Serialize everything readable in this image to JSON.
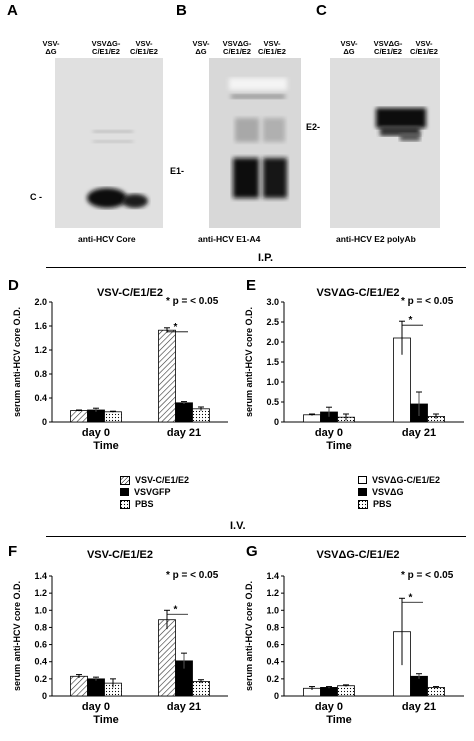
{
  "blots": {
    "A": {
      "letter": "A",
      "lanes": [
        "VSV-\nΔG",
        "VSVΔG-\nC/E1/E2",
        "VSV-\nC/E1/E2"
      ],
      "marker": "C -",
      "caption": "anti-HCV Core"
    },
    "B": {
      "letter": "B",
      "lanes": [
        "VSV-\nΔG",
        "VSVΔG-\nC/E1/E2",
        "VSV-\nC/E1/E2"
      ],
      "marker": "E1-",
      "caption": "anti-HCV E1-A4"
    },
    "C": {
      "letter": "C",
      "lanes": [
        "VSV-\nΔG",
        "VSVΔG-\nC/E1/E2",
        "VSV-\nC/E1/E2"
      ],
      "marker": "E2-",
      "caption": "anti-HCV E2 polyAb"
    }
  },
  "sections": {
    "ip": "I.P.",
    "iv": "I.V."
  },
  "legends": {
    "ip_left": [
      "VSV-C/E1/E2",
      "VSVGFP",
      "PBS"
    ],
    "ip_right": [
      "VSVΔG-C/E1/E2",
      "VSVΔG",
      "PBS"
    ]
  },
  "colors": {
    "bar_black": "#000000",
    "bar_white": "#ffffff",
    "blot_bg": "#dcdcdc"
  },
  "chart_data": [
    {
      "panel": "D",
      "type": "bar",
      "title": "VSV-C/E1/E2",
      "ylabel": "serum anti-HCV core O.D.",
      "xlabel": "Time",
      "categories": [
        "day 0",
        "day 21"
      ],
      "ylim": [
        0,
        2.0
      ],
      "yticks": [
        "0",
        "0.4",
        "0.8",
        "1.2",
        "1.6",
        "2.0"
      ],
      "annotation": "p = < 0.05",
      "significance_marker": "*",
      "series": [
        {
          "name": "VSV-C/E1/E2",
          "fill": "hatched",
          "values": [
            0.19,
            1.53
          ],
          "errors": [
            0.01,
            0.04
          ]
        },
        {
          "name": "VSVGFP",
          "fill": "black",
          "values": [
            0.2,
            0.32
          ],
          "errors": [
            0.03,
            0.02
          ]
        },
        {
          "name": "PBS",
          "fill": "dotted",
          "values": [
            0.17,
            0.22
          ],
          "errors": [
            0.01,
            0.03
          ]
        }
      ]
    },
    {
      "panel": "E",
      "type": "bar",
      "title": "VSVΔG-C/E1/E2",
      "ylabel": "serum anti-HCV core O.D.",
      "xlabel": "Time",
      "categories": [
        "day 0",
        "day 21"
      ],
      "ylim": [
        0,
        3.0
      ],
      "yticks": [
        "0",
        "0.5",
        "1.0",
        "1.5",
        "2.0",
        "2.5",
        "3.0"
      ],
      "annotation": "p = < 0.05",
      "significance_marker": "*",
      "series": [
        {
          "name": "VSVΔG-C/E1/E2",
          "fill": "white",
          "values": [
            0.18,
            2.1
          ],
          "errors": [
            0.02,
            0.42
          ]
        },
        {
          "name": "VSVΔG",
          "fill": "black",
          "values": [
            0.25,
            0.45
          ],
          "errors": [
            0.12,
            0.3
          ]
        },
        {
          "name": "PBS",
          "fill": "dotted",
          "values": [
            0.12,
            0.14
          ],
          "errors": [
            0.08,
            0.06
          ]
        }
      ]
    },
    {
      "panel": "F",
      "type": "bar",
      "title": "VSV-C/E1/E2",
      "ylabel": "serum anti-HCV core O.D.",
      "xlabel": "Time",
      "categories": [
        "day 0",
        "day 21"
      ],
      "ylim": [
        0,
        1.4
      ],
      "yticks": [
        "0",
        "0.2",
        "0.4",
        "0.6",
        "0.8",
        "1.0",
        "1.2",
        "1.4"
      ],
      "annotation": "p = < 0.05",
      "significance_marker": "*",
      "series": [
        {
          "name": "VSV-C/E1/E2",
          "fill": "hatched",
          "values": [
            0.23,
            0.89
          ],
          "errors": [
            0.02,
            0.11
          ]
        },
        {
          "name": "VSVGFP",
          "fill": "black",
          "values": [
            0.2,
            0.41
          ],
          "errors": [
            0.02,
            0.09
          ]
        },
        {
          "name": "PBS",
          "fill": "dotted",
          "values": [
            0.15,
            0.17
          ],
          "errors": [
            0.05,
            0.02
          ]
        }
      ]
    },
    {
      "panel": "G",
      "type": "bar",
      "title": "VSVΔG-C/E1/E2",
      "ylabel": "serum anti-HCV core O.D.",
      "xlabel": "Time",
      "categories": [
        "day 0",
        "day 21"
      ],
      "ylim": [
        0,
        1.4
      ],
      "yticks": [
        "0",
        "0.2",
        "0.4",
        "0.6",
        "0.8",
        "1.0",
        "1.2",
        "1.4"
      ],
      "annotation": "p = < 0.05",
      "significance_marker": "*",
      "series": [
        {
          "name": "VSVΔG-C/E1/E2",
          "fill": "white",
          "values": [
            0.09,
            0.75
          ],
          "errors": [
            0.02,
            0.39
          ]
        },
        {
          "name": "VSVΔG",
          "fill": "black",
          "values": [
            0.1,
            0.23
          ],
          "errors": [
            0.01,
            0.03
          ]
        },
        {
          "name": "PBS",
          "fill": "dotted",
          "values": [
            0.12,
            0.1
          ],
          "errors": [
            0.01,
            0.01
          ]
        }
      ]
    }
  ]
}
